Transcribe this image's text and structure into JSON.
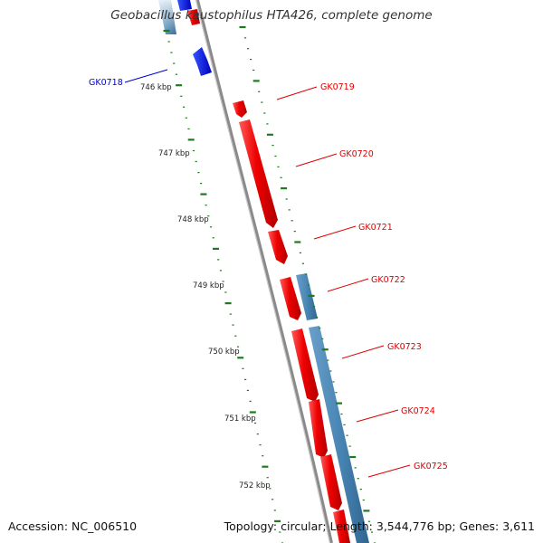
{
  "title": "Geobacillus kaustophilus HTA426, complete genome",
  "footer": {
    "accession": "Accession: NC_006510",
    "summary": "Topology: circular; Length: 3,544,776 bp; Genes: 3,611"
  },
  "colors": {
    "backbone": "#8a8a8a",
    "forward_gene": "#ee0000",
    "reverse_gene": "#0000dd",
    "cds_band": "#4a86b4",
    "tick": "#1f7a1f",
    "label_forward": "#dd0000",
    "label_reverse": "#0000cc"
  },
  "ruler": [
    {
      "label": "746 kbp"
    },
    {
      "label": "747 kbp"
    },
    {
      "label": "748 kbp"
    },
    {
      "label": "749 kbp"
    },
    {
      "label": "750 kbp"
    },
    {
      "label": "751 kbp"
    },
    {
      "label": "752 kbp"
    }
  ],
  "genes": [
    {
      "name": "GK0718",
      "strand": "reverse"
    },
    {
      "name": "GK0719",
      "strand": "forward"
    },
    {
      "name": "GK0720",
      "strand": "forward"
    },
    {
      "name": "GK0721",
      "strand": "forward"
    },
    {
      "name": "GK0722",
      "strand": "forward"
    },
    {
      "name": "GK0723",
      "strand": "forward"
    },
    {
      "name": "GK0724",
      "strand": "forward"
    },
    {
      "name": "GK0725",
      "strand": "forward"
    }
  ]
}
